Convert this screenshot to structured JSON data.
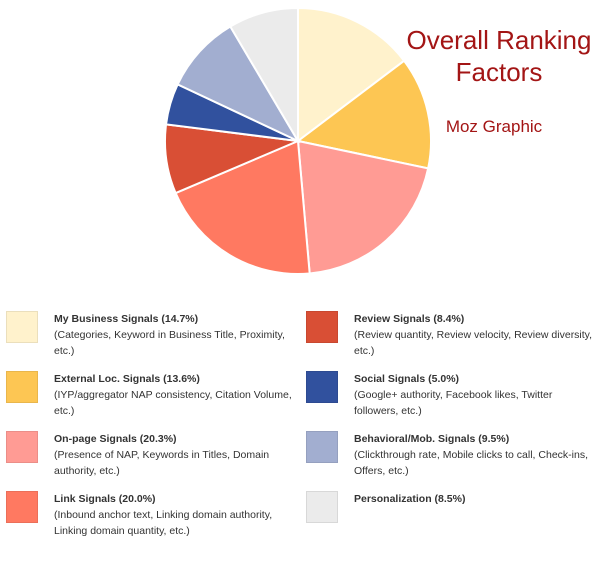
{
  "chart_data": {
    "type": "pie",
    "title": "Overall Ranking Factors",
    "subtitle": "Moz Graphic",
    "slices": [
      {
        "label": "My Business Signals",
        "pct_label": "(14.7%)",
        "value": 14.7,
        "color": "#fff2cc",
        "description": "(Categories, Keyword in Business Title, Proximity, etc.)"
      },
      {
        "label": "External Loc. Signals",
        "pct_label": "(13.6%)",
        "value": 13.6,
        "color": "#fdc653",
        "description": "(IYP/aggregator NAP consistency, Citation Volume, etc.)"
      },
      {
        "label": "On-page Signals",
        "pct_label": "(20.3%)",
        "value": 20.3,
        "color": "#ff9b94",
        "description": "(Presence of NAP, Keywords in Titles, Domain authority, etc.)"
      },
      {
        "label": "Link Signals",
        "pct_label": "(20.0%)",
        "value": 20.0,
        "color": "#ff7961",
        "description": "(Inbound anchor text, Linking domain authority, Linking domain quantity, etc.)"
      },
      {
        "label": "Review Signals",
        "pct_label": "(8.4%)",
        "value": 8.4,
        "color": "#d94f35",
        "description": "(Review quantity, Review velocity, Review diversity, etc.)"
      },
      {
        "label": "Social Signals",
        "pct_label": "(5.0%)",
        "value": 5.0,
        "color": "#31519e",
        "description": "(Google+ authority, Facebook likes, Twitter followers, etc.)"
      },
      {
        "label": "Behavioral/Mob. Signals",
        "pct_label": "(9.5%)",
        "value": 9.5,
        "color": "#a2aed0",
        "description": "(Clickthrough rate, Mobile clicks to call, Check-ins, Offers, etc.)"
      },
      {
        "label": "Personalization",
        "pct_label": "(8.5%)",
        "value": 8.5,
        "color": "#ebebeb",
        "description": ""
      }
    ]
  }
}
